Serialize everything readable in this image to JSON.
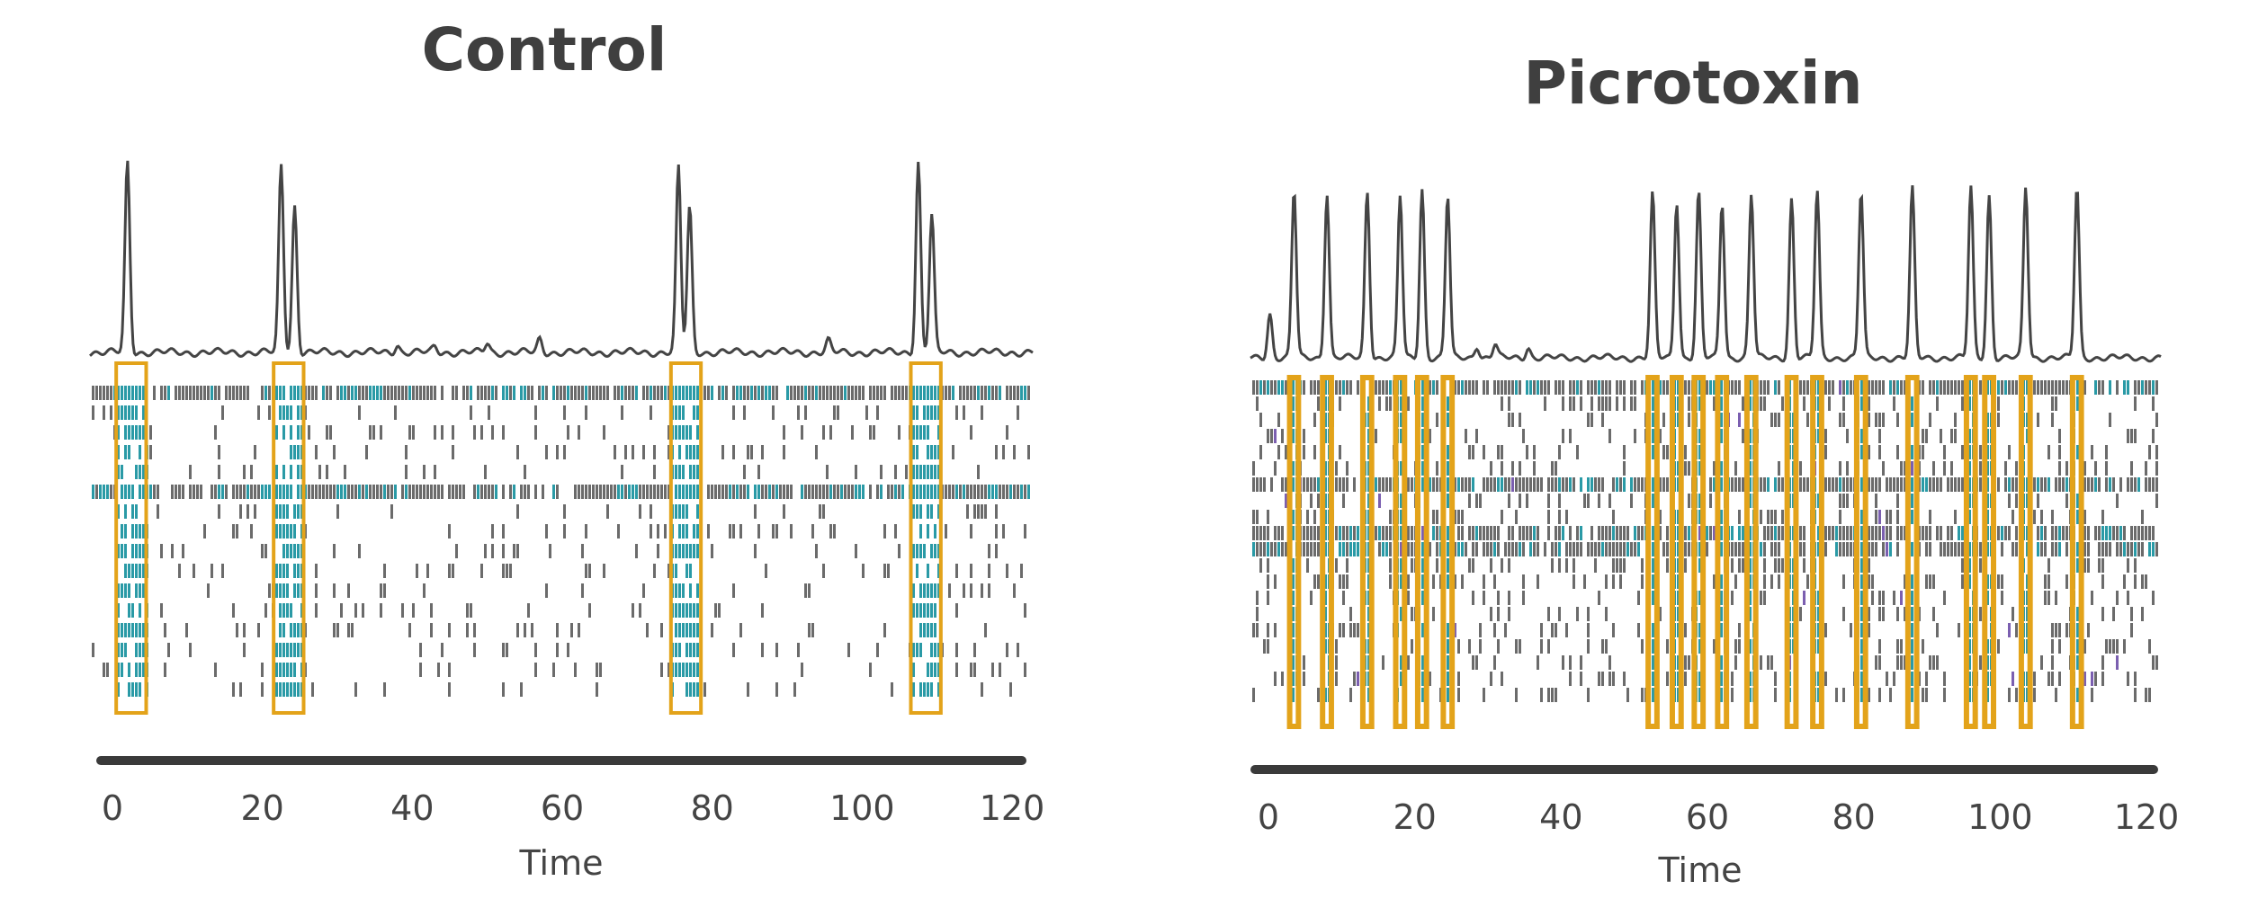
{
  "chart_data": [
    {
      "type": "line",
      "title": "Control",
      "xlabel": "Time",
      "xlim": [
        0,
        120
      ],
      "xticks": [
        0,
        20,
        40,
        60,
        80,
        100,
        120
      ],
      "burst_times": [
        2.5,
        23.5,
        76.5,
        108.5
      ],
      "burst_window": 4,
      "trace_peaks": [
        {
          "t": 2.0,
          "h": 1.0
        },
        {
          "t": 22.5,
          "h": 0.98
        },
        {
          "t": 24.3,
          "h": 0.77
        },
        {
          "t": 75.5,
          "h": 0.97
        },
        {
          "t": 77.0,
          "h": 0.76
        },
        {
          "t": 107.5,
          "h": 1.0
        },
        {
          "t": 109.3,
          "h": 0.72
        },
        {
          "t": 38.0,
          "h": 0.04
        },
        {
          "t": 43.0,
          "h": 0.03
        },
        {
          "t": 50.0,
          "h": 0.05
        },
        {
          "t": 57.0,
          "h": 0.07
        },
        {
          "t": 95.5,
          "h": 0.06
        }
      ],
      "raster_rows": 16,
      "raster_colors": [
        "#6b6b6b",
        "#2a9aa6"
      ]
    },
    {
      "type": "line",
      "title": "Picrotoxin",
      "xlabel": "Time",
      "xlim": [
        0,
        120
      ],
      "xticks": [
        0,
        20,
        40,
        60,
        80,
        100,
        120
      ],
      "burst_times": [
        3.5,
        8.0,
        13.5,
        18.0,
        21.0,
        24.5,
        52.5,
        55.8,
        58.8,
        62.0,
        66.0,
        71.5,
        75.0,
        81.0,
        88.0,
        96.0,
        98.5,
        103.5,
        110.5
      ],
      "burst_window": 1.2,
      "trace_peaks": [
        {
          "t": 0.2,
          "h": 0.26
        },
        {
          "t": 3.5,
          "h": 0.98
        },
        {
          "t": 8.0,
          "h": 0.97
        },
        {
          "t": 13.5,
          "h": 0.98
        },
        {
          "t": 18.0,
          "h": 0.95
        },
        {
          "t": 21.0,
          "h": 0.99
        },
        {
          "t": 24.5,
          "h": 0.95
        },
        {
          "t": 52.5,
          "h": 0.96
        },
        {
          "t": 55.8,
          "h": 0.92
        },
        {
          "t": 58.8,
          "h": 0.97
        },
        {
          "t": 62.0,
          "h": 0.91
        },
        {
          "t": 66.0,
          "h": 0.96
        },
        {
          "t": 71.5,
          "h": 0.93
        },
        {
          "t": 75.0,
          "h": 0.98
        },
        {
          "t": 81.0,
          "h": 0.97
        },
        {
          "t": 88.0,
          "h": 0.99
        },
        {
          "t": 96.0,
          "h": 1.0
        },
        {
          "t": 98.5,
          "h": 0.95
        },
        {
          "t": 103.5,
          "h": 1.0
        },
        {
          "t": 110.5,
          "h": 1.0
        },
        {
          "t": 28.5,
          "h": 0.07
        },
        {
          "t": 31.0,
          "h": 0.08
        },
        {
          "t": 35.5,
          "h": 0.06
        }
      ],
      "raster_rows": 20,
      "raster_colors": [
        "#6b6b6b",
        "#2a9aa6",
        "#7b5fb0"
      ]
    }
  ]
}
